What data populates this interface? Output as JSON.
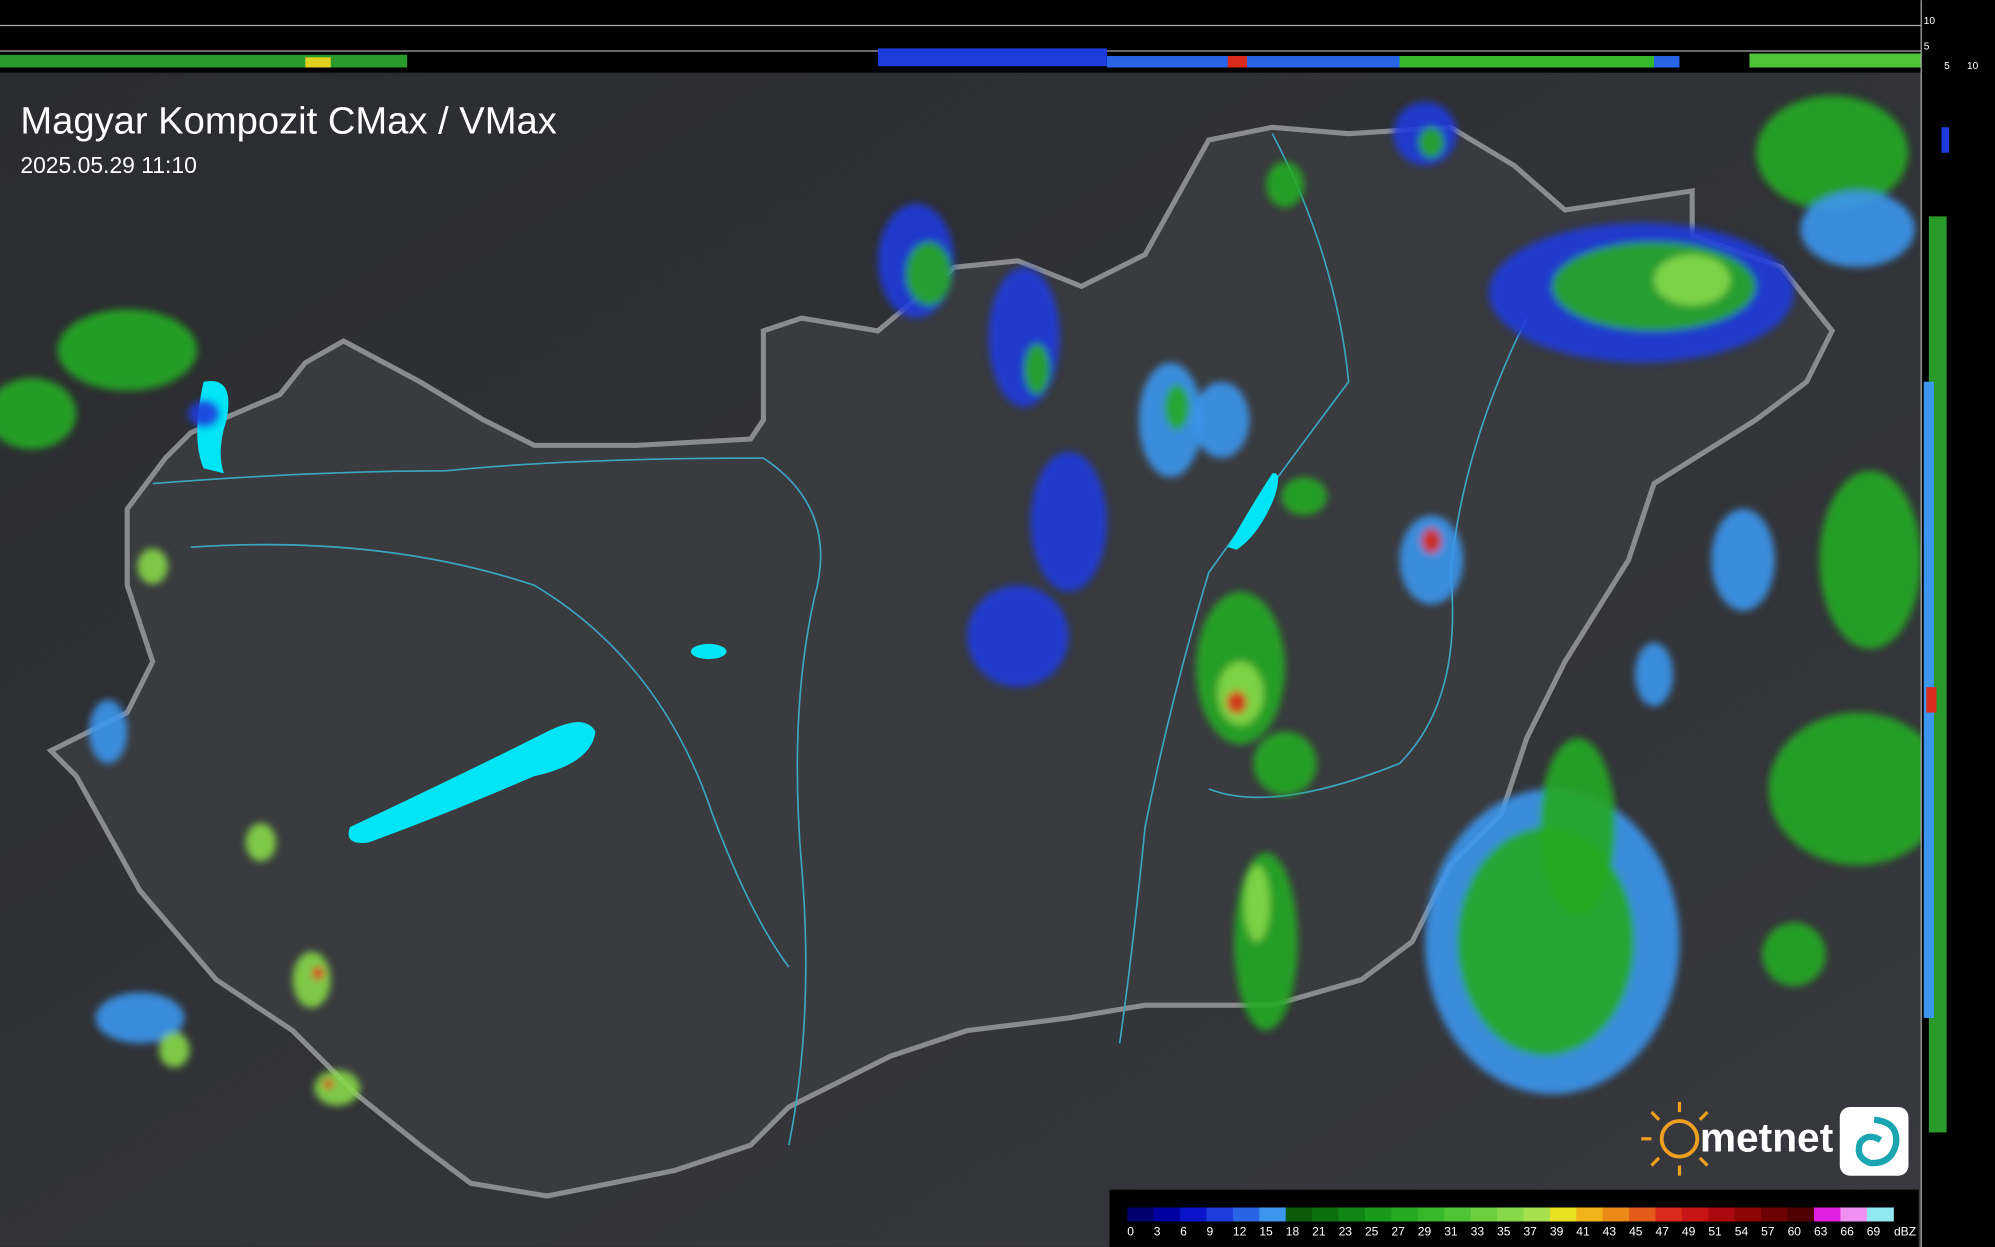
{
  "header": {
    "title": "Magyar Kompozit CMax / VMax",
    "timestamp": "2025.05.29 11:10"
  },
  "side_axis": {
    "top_labels": [
      "10",
      "5"
    ],
    "bottom_labels": [
      "5",
      "10"
    ]
  },
  "logo": {
    "text": "metnet"
  },
  "legend": {
    "labels": [
      "0",
      "3",
      "6",
      "9",
      "12",
      "15",
      "18",
      "21",
      "23",
      "25",
      "27",
      "29",
      "31",
      "33",
      "35",
      "37",
      "39",
      "41",
      "43",
      "45",
      "47",
      "49",
      "51",
      "54",
      "57",
      "60",
      "63",
      "66",
      "69"
    ],
    "unit": "dBZ",
    "colors": [
      "#00006e",
      "#0000a0",
      "#0a14c8",
      "#1e3cdc",
      "#2864e6",
      "#3c96ee",
      "#0a5a0a",
      "#0c700c",
      "#128612",
      "#1a9a1a",
      "#26aa22",
      "#36b82a",
      "#4ec434",
      "#6ad03e",
      "#86d848",
      "#a6e04e",
      "#e8e020",
      "#f0b418",
      "#ec8a18",
      "#e45a18",
      "#dc2a1a",
      "#c81414",
      "#aa0a0e",
      "#8c0606",
      "#6e0202",
      "#500000",
      "#e020e0",
      "#f090f0",
      "#90e8f0"
    ]
  }
}
